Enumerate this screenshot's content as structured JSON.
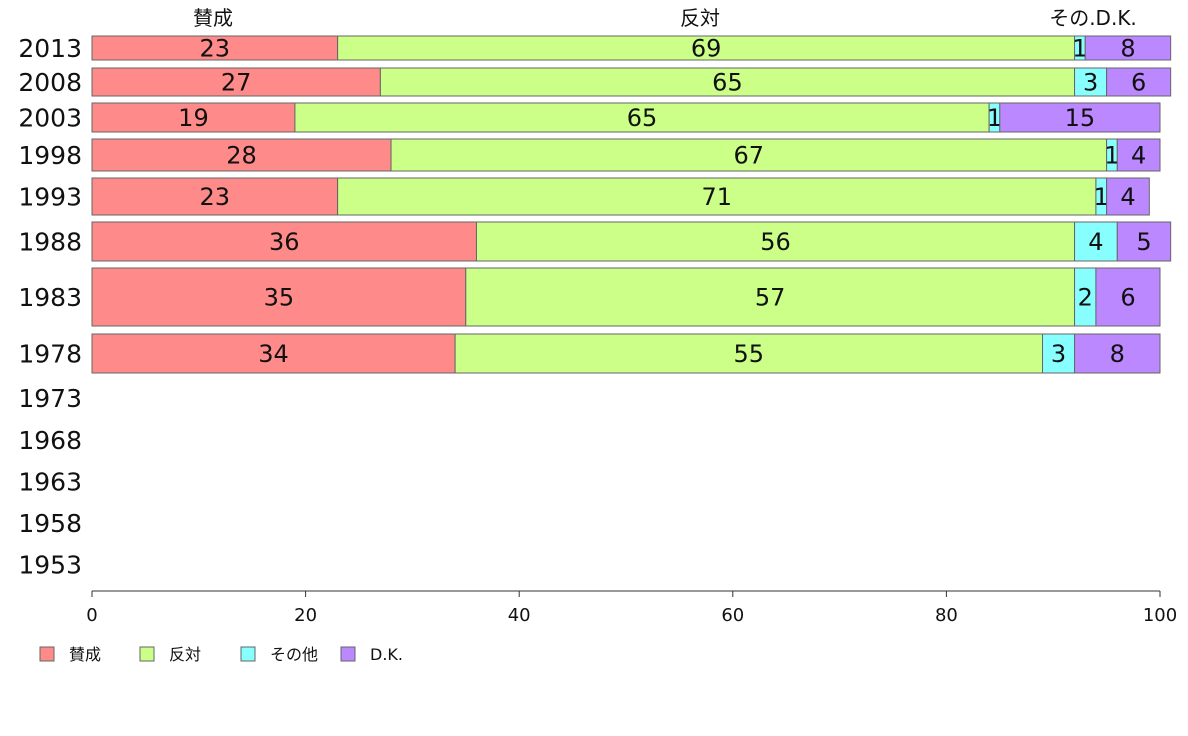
{
  "chart_data": {
    "type": "bar",
    "orientation": "horizontal",
    "stacked": true,
    "top_labels": [
      "賛成",
      "反対",
      "その.D.K."
    ],
    "categories": [
      "2013",
      "2008",
      "2003",
      "1998",
      "1993",
      "1988",
      "1983",
      "1978",
      "1973",
      "1968",
      "1963",
      "1958",
      "1953"
    ],
    "series": [
      {
        "name": "賛成",
        "color": "#ff8a8a",
        "values": [
          23,
          27,
          19,
          28,
          23,
          36,
          35,
          34,
          null,
          null,
          null,
          null,
          null
        ]
      },
      {
        "name": "反対",
        "color": "#ccff88",
        "values": [
          69,
          65,
          65,
          67,
          71,
          56,
          57,
          55,
          null,
          null,
          null,
          null,
          null
        ]
      },
      {
        "name": "その他",
        "color": "#88ffff",
        "values": [
          1,
          3,
          1,
          1,
          1,
          4,
          2,
          3,
          null,
          null,
          null,
          null,
          null
        ]
      },
      {
        "name": "D.K.",
        "color": "#bb88ff",
        "values": [
          8,
          6,
          15,
          4,
          4,
          5,
          6,
          8,
          null,
          null,
          null,
          null,
          null
        ]
      }
    ],
    "xlim": [
      0,
      100
    ],
    "xticks": [
      "0",
      "20",
      "40",
      "60",
      "80",
      "100"
    ],
    "legend": {
      "placement": "bottom-left",
      "items": [
        "賛成",
        "反対",
        "その他",
        "D.K."
      ]
    },
    "grid": false
  }
}
